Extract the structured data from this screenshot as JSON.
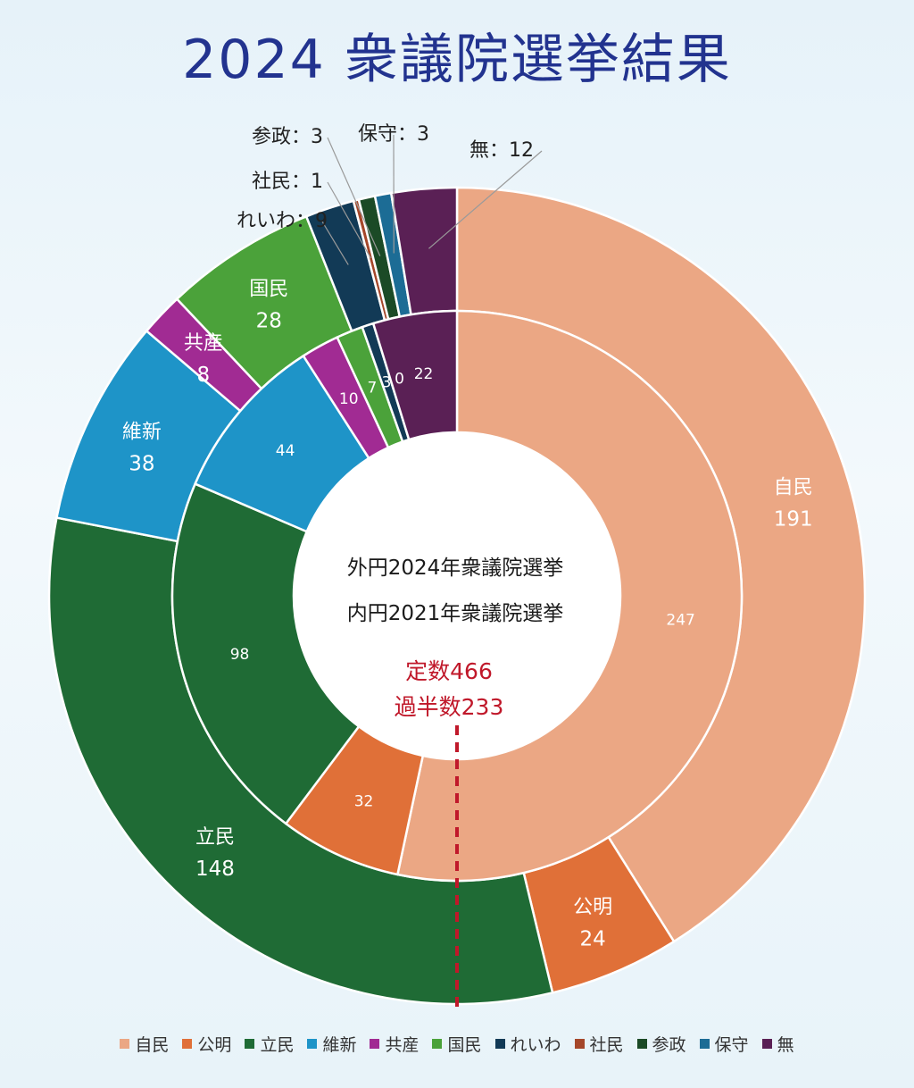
{
  "title": "2024 衆議院選挙結果",
  "center": {
    "line1": "外円2024年衆議院選挙",
    "line2": "内円2021年衆議院選挙",
    "total": "定数466",
    "majority": "過半数233"
  },
  "chart_data": {
    "type": "pie",
    "title": "2024 衆議院選挙結果",
    "majority_line": 233,
    "total_seats": 466,
    "categories": [
      "自民",
      "公明",
      "立民",
      "維新",
      "共産",
      "国民",
      "れいわ",
      "社民",
      "参政",
      "保守",
      "無"
    ],
    "colors": [
      "#eba784",
      "#e07038",
      "#1f6b35",
      "#1e94c8",
      "#a12b93",
      "#4ba23a",
      "#123a56",
      "#a5472a",
      "#1b4a26",
      "#1c6c95",
      "#5a2055"
    ],
    "series": [
      {
        "name": "2024年衆議院選挙",
        "values": [
          191,
          24,
          148,
          38,
          8,
          28,
          9,
          1,
          3,
          3,
          12
        ],
        "labels": [
          {
            "name": "自民",
            "value": "191"
          },
          {
            "name": "公明",
            "value": "24"
          },
          {
            "name": "立民",
            "value": "148"
          },
          {
            "name": "維新",
            "value": "38"
          },
          {
            "name": "共産",
            "value": "8"
          },
          {
            "name": "国民",
            "value": "28"
          },
          {
            "name": "れいわ",
            "value": "9"
          },
          {
            "name": "社民",
            "value": "1"
          },
          {
            "name": "参政",
            "value": "3"
          },
          {
            "name": "保守",
            "value": "3"
          },
          {
            "name": "無",
            "value": "12"
          }
        ]
      },
      {
        "name": "2021年衆議院選挙",
        "values": [
          247,
          32,
          98,
          44,
          10,
          7,
          3,
          0,
          0,
          0,
          22
        ],
        "labels": [
          "247",
          "32",
          "98",
          "44",
          "10",
          "7",
          "3",
          "0",
          "",
          "",
          "22"
        ]
      }
    ]
  }
}
